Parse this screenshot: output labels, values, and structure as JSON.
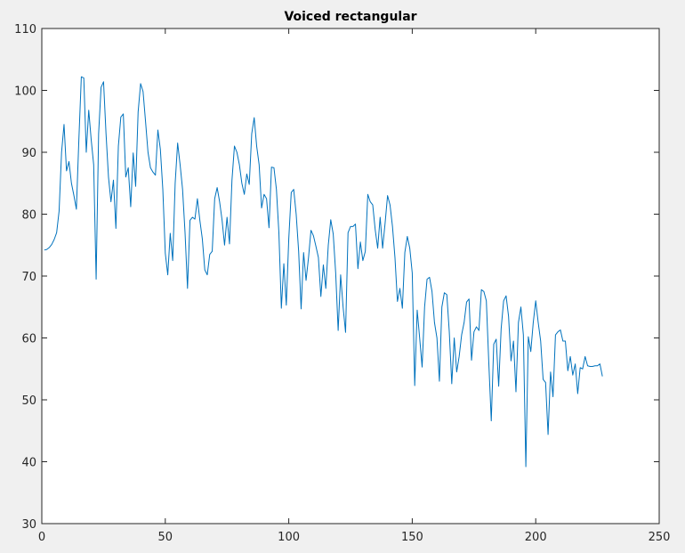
{
  "chart_data": {
    "type": "line",
    "title": "Voiced rectangular",
    "xlabel": "",
    "ylabel": "",
    "xlim": [
      0,
      250
    ],
    "ylim": [
      30,
      110
    ],
    "xticks": [
      0,
      50,
      100,
      150,
      200,
      250
    ],
    "yticks": [
      30,
      40,
      50,
      60,
      70,
      80,
      90,
      100,
      110
    ],
    "grid": false,
    "line_color": "#0072BD",
    "background_color": "#ffffff",
    "figure_color": "#f0f0f0",
    "series": [
      {
        "x_start": 1,
        "x_step": 1,
        "values": [
          74.2,
          74.3,
          74.6,
          75.1,
          75.9,
          77.0,
          80.5,
          90.0,
          94.5,
          87.0,
          88.5,
          85.0,
          83.0,
          80.8,
          92.0,
          102.2,
          102.0,
          90.0,
          96.8,
          92.0,
          88.0,
          69.5,
          93.0,
          100.5,
          101.4,
          93.0,
          86.0,
          82.0,
          85.5,
          77.7,
          91.0,
          95.7,
          96.2,
          86.0,
          87.5,
          81.2,
          89.9,
          84.5,
          96.5,
          101.1,
          99.8,
          95.0,
          90.0,
          87.5,
          86.8,
          86.3,
          93.6,
          90.5,
          84.0,
          73.7,
          70.2,
          76.9,
          72.5,
          85.0,
          91.5,
          88.0,
          84.0,
          77.0,
          68.0,
          79.0,
          79.5,
          79.2,
          82.5,
          79.0,
          76.0,
          71.0,
          70.2,
          73.5,
          74.0,
          82.5,
          84.3,
          82.0,
          79.0,
          75.0,
          79.5,
          75.2,
          85.5,
          91.0,
          90.0,
          88.0,
          85.0,
          83.2,
          86.5,
          84.8,
          93.0,
          95.6,
          91.0,
          88.0,
          81.0,
          83.2,
          82.5,
          77.8,
          87.6,
          87.5,
          84.0,
          77.0,
          64.8,
          72.0,
          65.3,
          76.0,
          83.5,
          84.0,
          80.0,
          74.0,
          64.7,
          73.8,
          69.3,
          73.0,
          77.4,
          76.5,
          74.8,
          73.0,
          66.7,
          71.8,
          68.0,
          75.0,
          79.1,
          76.8,
          70.5,
          61.2,
          70.2,
          65.0,
          60.9,
          77.0,
          78.0,
          78.0,
          78.4,
          71.2,
          75.5,
          72.5,
          74.0,
          83.2,
          82.0,
          81.5,
          77.5,
          74.5,
          79.5,
          74.5,
          78.5,
          83.0,
          81.5,
          78.0,
          73.0,
          65.9,
          68.0,
          64.8,
          73.8,
          76.4,
          74.5,
          70.5,
          52.3,
          64.5,
          60.0,
          55.3,
          65.0,
          69.5,
          69.8,
          67.5,
          62.5,
          60.0,
          53.0,
          65.0,
          67.3,
          67.0,
          61.0,
          52.6,
          60.0,
          54.5,
          57.0,
          60.5,
          62.5,
          65.8,
          66.3,
          56.4,
          61.0,
          61.8,
          61.2,
          67.8,
          67.5,
          66.0,
          56.0,
          46.6,
          59.0,
          59.8,
          52.2,
          61.5,
          66.0,
          66.8,
          63.5,
          56.3,
          59.5,
          51.3,
          62.5,
          65.0,
          60.5,
          39.2,
          60.2,
          57.8,
          62.5,
          66.0,
          62.5,
          59.5,
          53.3,
          52.8,
          44.4,
          54.5,
          50.5,
          60.5,
          61.0,
          61.3,
          59.5,
          59.5,
          54.7,
          57.0,
          54.0,
          55.8,
          51.0,
          55.2,
          55.0,
          57.0,
          55.5,
          55.4,
          55.4,
          55.5,
          55.5,
          55.8,
          53.8
        ]
      }
    ]
  }
}
